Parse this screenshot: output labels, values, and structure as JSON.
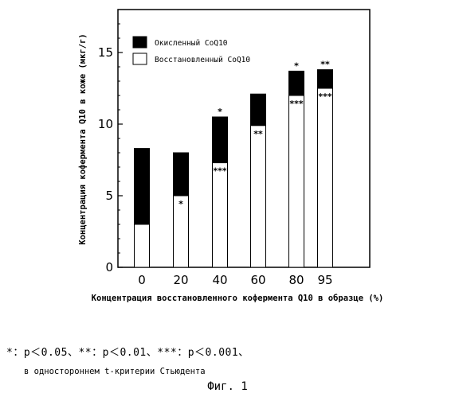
{
  "chart_data": {
    "type": "bar",
    "stacked": true,
    "categories": [
      "0",
      "20",
      "40",
      "60",
      "80",
      "95"
    ],
    "series": [
      {
        "name": "Восстановленный CoQ10",
        "values": [
          3.0,
          5.0,
          7.3,
          9.9,
          12.0,
          12.5
        ],
        "color": "#ffffff"
      },
      {
        "name": "Окисленный CoQ10",
        "values": [
          5.3,
          3.0,
          3.2,
          2.2,
          1.7,
          1.3
        ],
        "color": "#000000"
      }
    ],
    "reduced_significance": [
      "",
      "*",
      "***",
      "**",
      "***",
      "***"
    ],
    "total_significance": [
      "",
      "",
      "*",
      "",
      "*",
      "**"
    ],
    "xlabel": "Концентрация восстановленного кофермента Q10 в образце (%)",
    "ylabel": "Концентрация кофермента Q10 в коже (мкг/г)",
    "yticks": [
      "0",
      "5",
      "10",
      "15"
    ],
    "ylim": [
      0,
      18
    ],
    "legend_position": "top-left"
  },
  "footnote": {
    "significance": "*：p＜0.05、**：p＜0.01、***：p＜0.001、",
    "test": "в одностороннем t-критерии Стьюдента"
  },
  "figure_caption": "Фиг. 1"
}
